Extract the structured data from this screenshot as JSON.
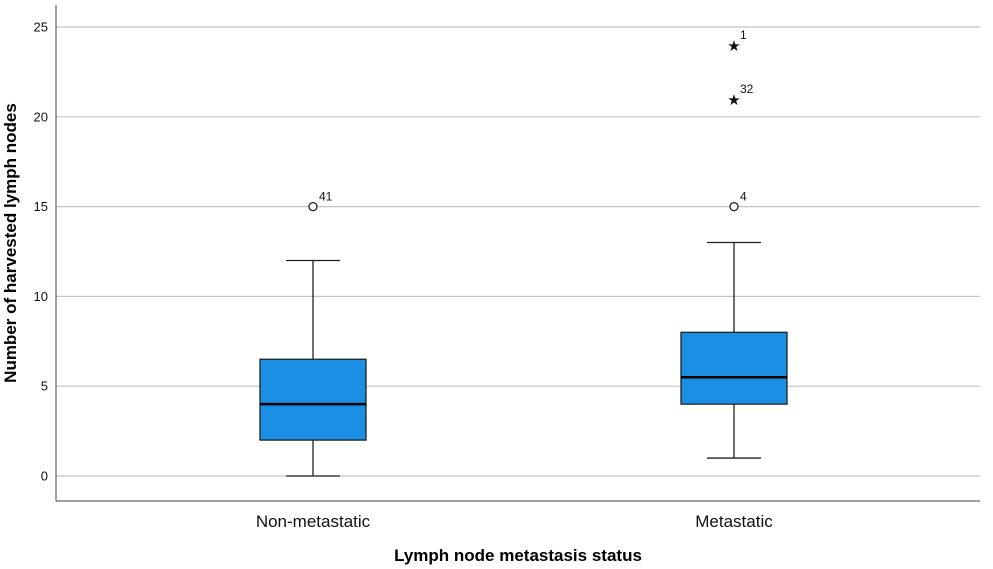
{
  "chart_data": {
    "type": "boxplot",
    "xlabel": "Lymph node metastasis status",
    "ylabel": "Number of harvested lymph nodes",
    "ylim": [
      -1.4,
      26.2
    ],
    "yticks": [
      0,
      5,
      10,
      15,
      20,
      25
    ],
    "grid": true,
    "box_color": "#1a8fe3",
    "categories": [
      {
        "name": "Non-metastatic",
        "whisker_low": 0,
        "q1": 2,
        "median": 4,
        "q3": 6.5,
        "whisker_high": 12,
        "outliers": [
          {
            "value": 15,
            "label": "41",
            "marker": "circle"
          }
        ]
      },
      {
        "name": "Metastatic",
        "whisker_low": 1,
        "q1": 4,
        "median": 5.5,
        "q3": 8,
        "whisker_high": 13,
        "outliers": [
          {
            "value": 24,
            "label": "1",
            "marker": "star"
          },
          {
            "value": 21,
            "label": "32",
            "marker": "star"
          },
          {
            "value": 15,
            "label": "4",
            "marker": "circle"
          }
        ]
      }
    ]
  }
}
